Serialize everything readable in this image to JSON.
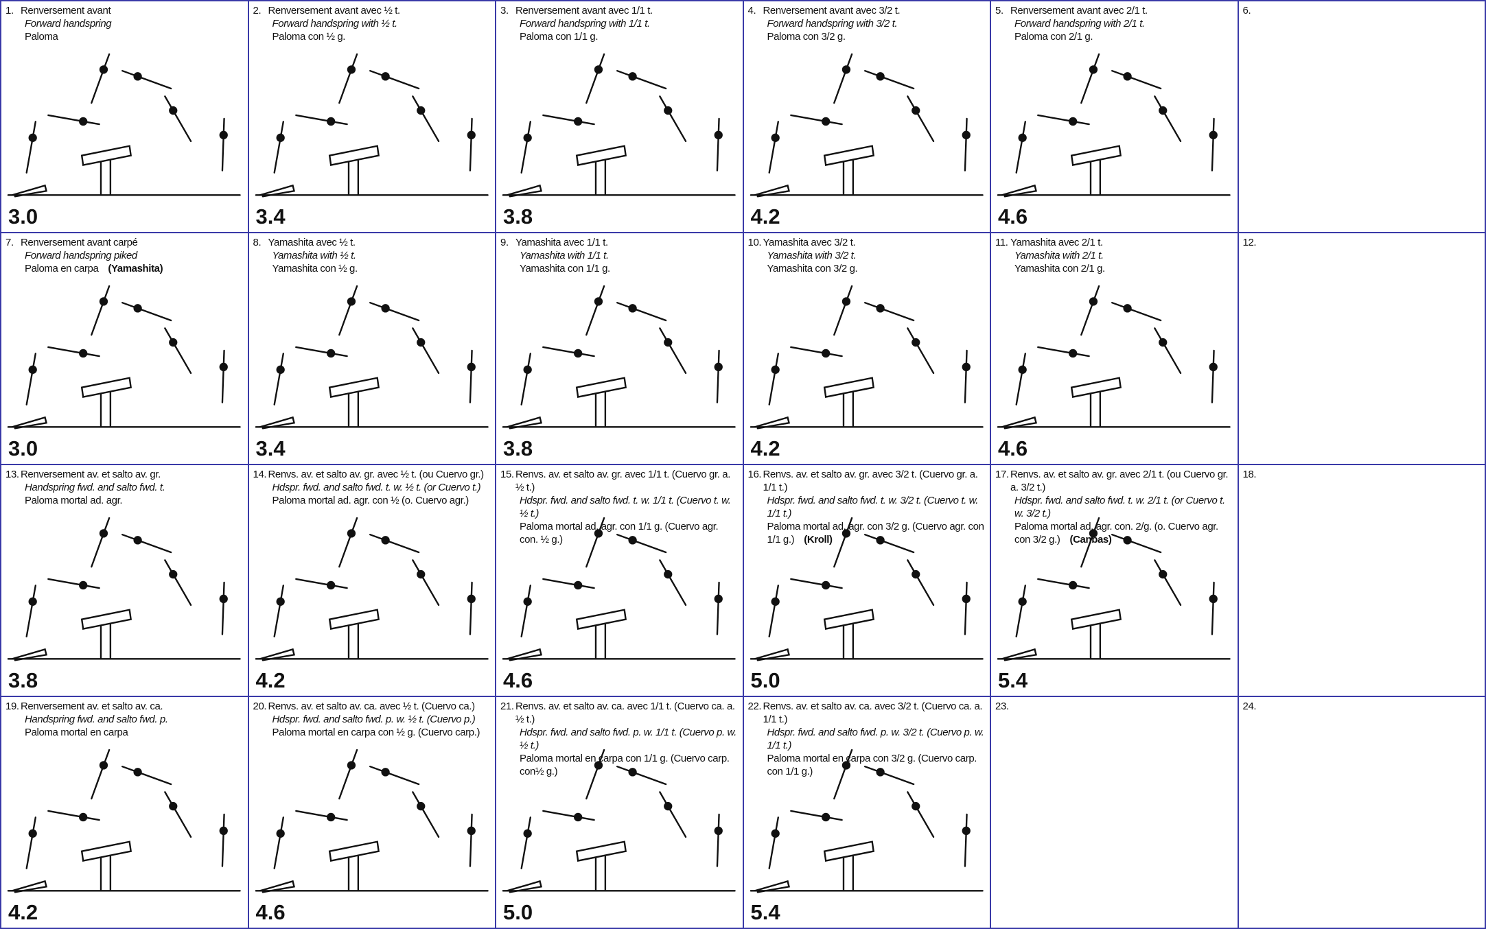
{
  "cells": [
    {
      "number": "1.",
      "fr": "Renversement avant",
      "en": "Forward handspring",
      "es": "Paloma",
      "score": "3.0"
    },
    {
      "number": "2.",
      "fr": "Renversement avant avec ½ t.",
      "en": "Forward handspring with ½ t.",
      "es": "Paloma con ½ g.",
      "score": "3.4"
    },
    {
      "number": "3.",
      "fr": "Renversement avant avec 1/1 t.",
      "en": "Forward handspring with 1/1 t.",
      "es": "Paloma con 1/1 g.",
      "score": "3.8"
    },
    {
      "number": "4.",
      "fr": "Renversement avant avec 3/2 t.",
      "en": "Forward handspring with 3/2 t.",
      "es": "Paloma con 3/2 g.",
      "score": "4.2"
    },
    {
      "number": "5.",
      "fr": "Renversement avant avec 2/1 t.",
      "en": "Forward handspring with 2/1 t.",
      "es": "Paloma con 2/1 g.",
      "score": "4.6"
    },
    {
      "number": "6."
    },
    {
      "number": "7.",
      "fr": "Renversement avant carpé",
      "en": "Forward handspring piked",
      "es": "Paloma en carpa",
      "name": "(Yamashita)",
      "score": "3.0"
    },
    {
      "number": "8.",
      "fr": "Yamashita avec ½ t.",
      "en": "Yamashita with ½ t.",
      "es": "Yamashita con ½ g.",
      "score": "3.4"
    },
    {
      "number": "9.",
      "fr": "Yamashita avec 1/1 t.",
      "en": "Yamashita with 1/1 t.",
      "es": "Yamashita con 1/1 g.",
      "score": "3.8"
    },
    {
      "number": "10.",
      "fr": "Yamashita avec 3/2 t.",
      "en": "Yamashita with 3/2 t.",
      "es": "Yamashita con 3/2 g.",
      "score": "4.2"
    },
    {
      "number": "11.",
      "fr": "Yamashita avec 2/1 t.",
      "en": "Yamashita with 2/1 t.",
      "es": "Yamashita con 2/1 g.",
      "score": "4.6"
    },
    {
      "number": "12."
    },
    {
      "number": "13.",
      "fr": "Renversement av. et salto av. gr.",
      "en": "Handspring fwd. and salto fwd. t.",
      "es": "Paloma mortal ad. agr.",
      "score": "3.8"
    },
    {
      "number": "14.",
      "fr": "Renvs. av. et salto av. gr. avec ½ t. (ou Cuervo gr.)",
      "en": "Hdspr. fwd. and salto fwd. t. w. ½ t. (or Cuervo t.)",
      "es": "Paloma mortal ad. agr. con ½ (o. Cuervo agr.)",
      "score": "4.2"
    },
    {
      "number": "15.",
      "fr": "Renvs. av. et salto av. gr. avec 1/1 t. (Cuervo gr. a. ½ t.)",
      "en": "Hdspr. fwd. and salto fwd. t. w. 1/1 t. (Cuervo t. w. ½ t.)",
      "es": "Paloma mortal ad. agr. con 1/1 g. (Cuervo agr. con. ½ g.)",
      "score": "4.6"
    },
    {
      "number": "16.",
      "fr": "Renvs. av. et salto av. gr. avec 3/2 t. (Cuervo gr. a. 1/1 t.)",
      "en": "Hdspr. fwd. and salto fwd. t. w. 3/2 t. (Cuervo t. w. 1/1 t.)",
      "es": "Paloma mortal ad. agr. con 3/2 g. (Cuervo agr. con 1/1 g.)",
      "name": "(Kroll)",
      "score": "5.0"
    },
    {
      "number": "17.",
      "fr": "Renvs. av. et salto av. gr. avec 2/1 t. (ou Cuervo gr. a. 3/2 t.)",
      "en": "Hdspr. fwd. and salto fwd. t. w. 2/1 t. (or Cuervo t. w. 3/2 t.)",
      "es": "Paloma mortal ad. agr. con. 2/g. (o. Cuervo agr. con 3/2 g.)",
      "name": "(Canbas)",
      "score": "5.4"
    },
    {
      "number": "18."
    },
    {
      "number": "19.",
      "fr": "Renversement av. et salto av. ca.",
      "en": "Handspring fwd. and salto fwd. p.",
      "es": "Paloma mortal en carpa",
      "score": "4.2"
    },
    {
      "number": "20.",
      "fr": "Renvs. av. et salto av. ca. avec ½ t. (Cuervo ca.)",
      "en": "Hdspr. fwd. and salto fwd. p. w. ½ t. (Cuervo p.)",
      "es": "Paloma mortal en carpa con ½ g. (Cuervo carp.)",
      "score": "4.6"
    },
    {
      "number": "21.",
      "fr": "Renvs. av. et salto av. ca. avec 1/1 t. (Cuervo ca. a. ½ t.)",
      "en": "Hdspr. fwd. and salto fwd. p. w. 1/1 t. (Cuervo p. w. ½ t.)",
      "es": "Paloma mortal en carpa con 1/1 g. (Cuervo carp. con½ g.)",
      "score": "5.0"
    },
    {
      "number": "22.",
      "fr": "Renvs. av. et salto av. ca. avec 3/2 t. (Cuervo ca. a. 1/1 t.)",
      "en": "Hdspr. fwd. and salto fwd. p. w. 3/2 t. (Cuervo p. w. 1/1 t.)",
      "es": "Paloma mortal en carpa con 3/2 g. (Cuervo carp. con 1/1 g.)",
      "score": "5.4"
    },
    {
      "number": "23."
    },
    {
      "number": "24."
    }
  ]
}
